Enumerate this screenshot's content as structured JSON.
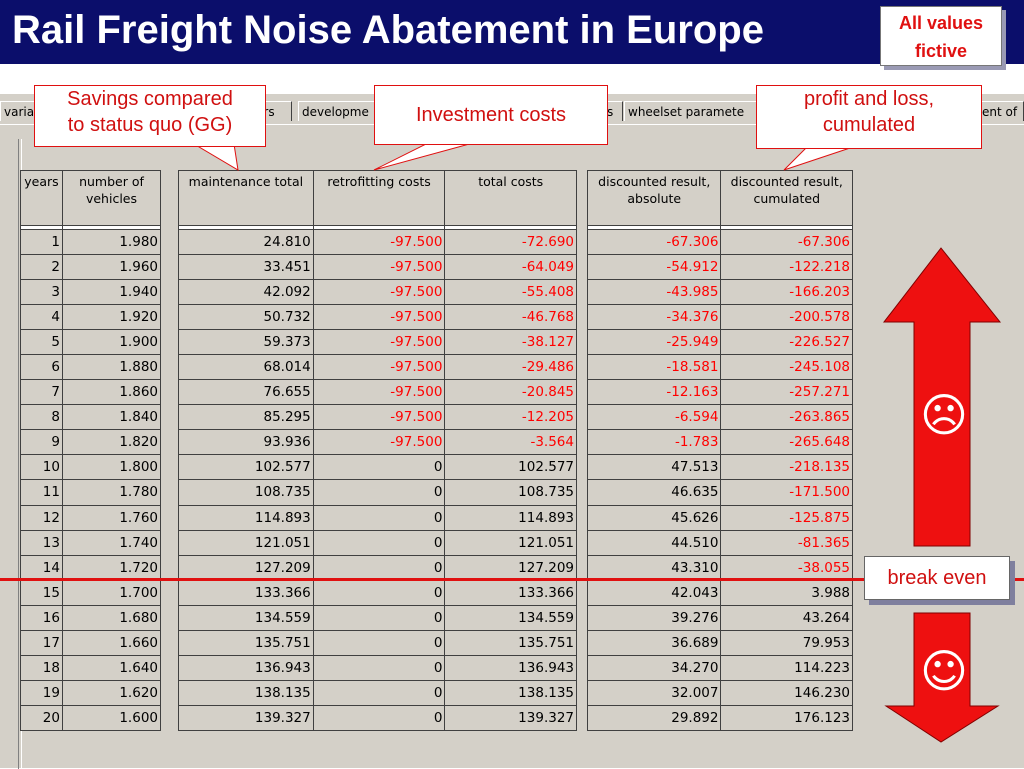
{
  "slide": {
    "title": "Rail Freight Noise Abatement in Europe",
    "fictive_line1": "All values",
    "fictive_line2": "fictive",
    "title_bg": "#0b0e6b",
    "accent": "#e01010"
  },
  "tabs": [
    "varia",
    "ers",
    "developme",
    "s",
    "wheelset paramete",
    "ent of"
  ],
  "table_left": {
    "headers": [
      "years",
      "number of vehicles"
    ],
    "rows": [
      [
        "1",
        "1.980"
      ],
      [
        "2",
        "1.960"
      ],
      [
        "3",
        "1.940"
      ],
      [
        "4",
        "1.920"
      ],
      [
        "5",
        "1.900"
      ],
      [
        "6",
        "1.880"
      ],
      [
        "7",
        "1.860"
      ],
      [
        "8",
        "1.840"
      ],
      [
        "9",
        "1.820"
      ],
      [
        "10",
        "1.800"
      ],
      [
        "11",
        "1.780"
      ],
      [
        "12",
        "1.760"
      ],
      [
        "13",
        "1.740"
      ],
      [
        "14",
        "1.720"
      ],
      [
        "15",
        "1.700"
      ],
      [
        "16",
        "1.680"
      ],
      [
        "17",
        "1.660"
      ],
      [
        "18",
        "1.640"
      ],
      [
        "19",
        "1.620"
      ],
      [
        "20",
        "1.600"
      ]
    ]
  },
  "table_mid": {
    "headers": [
      "maintenance total",
      "retrofitting costs",
      "total costs"
    ],
    "rows": [
      [
        "24.810",
        "-97.500",
        "-72.690"
      ],
      [
        "33.451",
        "-97.500",
        "-64.049"
      ],
      [
        "42.092",
        "-97.500",
        "-55.408"
      ],
      [
        "50.732",
        "-97.500",
        "-46.768"
      ],
      [
        "59.373",
        "-97.500",
        "-38.127"
      ],
      [
        "68.014",
        "-97.500",
        "-29.486"
      ],
      [
        "76.655",
        "-97.500",
        "-20.845"
      ],
      [
        "85.295",
        "-97.500",
        "-12.205"
      ],
      [
        "93.936",
        "-97.500",
        "-3.564"
      ],
      [
        "102.577",
        "0",
        "102.577"
      ],
      [
        "108.735",
        "0",
        "108.735"
      ],
      [
        "114.893",
        "0",
        "114.893"
      ],
      [
        "121.051",
        "0",
        "121.051"
      ],
      [
        "127.209",
        "0",
        "127.209"
      ],
      [
        "133.366",
        "0",
        "133.366"
      ],
      [
        "134.559",
        "0",
        "134.559"
      ],
      [
        "135.751",
        "0",
        "135.751"
      ],
      [
        "136.943",
        "0",
        "136.943"
      ],
      [
        "138.135",
        "0",
        "138.135"
      ],
      [
        "139.327",
        "0",
        "139.327"
      ]
    ]
  },
  "table_right": {
    "headers": [
      "discounted result, absolute",
      "discounted result, cumulated"
    ],
    "rows": [
      [
        "-67.306",
        "-67.306"
      ],
      [
        "-54.912",
        "-122.218"
      ],
      [
        "-43.985",
        "-166.203"
      ],
      [
        "-34.376",
        "-200.578"
      ],
      [
        "-25.949",
        "-226.527"
      ],
      [
        "-18.581",
        "-245.108"
      ],
      [
        "-12.163",
        "-257.271"
      ],
      [
        "-6.594",
        "-263.865"
      ],
      [
        "-1.783",
        "-265.648"
      ],
      [
        "47.513",
        "-218.135"
      ],
      [
        "46.635",
        "-171.500"
      ],
      [
        "45.626",
        "-125.875"
      ],
      [
        "44.510",
        "-81.365"
      ],
      [
        "43.310",
        "-38.055"
      ],
      [
        "42.043",
        "3.988"
      ],
      [
        "39.276",
        "43.264"
      ],
      [
        "36.689",
        "79.953"
      ],
      [
        "34.270",
        "114.223"
      ],
      [
        "32.007",
        "146.230"
      ],
      [
        "29.892",
        "176.123"
      ]
    ]
  },
  "callouts": {
    "savings_line1": "Savings compared",
    "savings_line2": "to status quo (GG)",
    "investment": "Investment costs",
    "profit_line1": "profit and loss,",
    "profit_line2": "cumulated",
    "break_even": "break even"
  },
  "icons": {
    "sad": "☹",
    "happy": "☺"
  }
}
